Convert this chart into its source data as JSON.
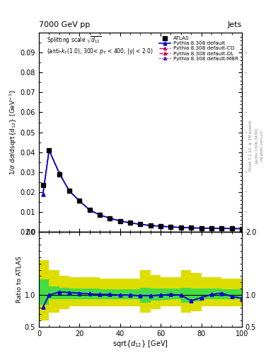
{
  "title_top": "7000 GeV pp",
  "title_right": "Jets",
  "xlabel": "sqrt{d_{12}} [GeV]",
  "ylabel_main": "1/#sigma d#sigma/dsqrt{d_{12}} [GeV^{-1}]",
  "ylabel_ratio": "Ratio to ATLAS",
  "rivet_label": "Rivet 3.1.10, ≥ 3M events",
  "arxiv_label": "[arXiv:1306.3436]",
  "mcplots_label": "mcplots.cern.ch",
  "xlim": [
    0,
    100
  ],
  "ylim_main": [
    0,
    0.1
  ],
  "ylim_ratio": [
    0.5,
    2.0
  ],
  "main_x": [
    2,
    5,
    10,
    15,
    20,
    25,
    30,
    35,
    40,
    45,
    50,
    55,
    60,
    65,
    70,
    75,
    80,
    85,
    90,
    95,
    100
  ],
  "data_y": [
    0.0235,
    0.041,
    0.029,
    0.0205,
    0.0155,
    0.011,
    0.0085,
    0.0068,
    0.0055,
    0.0045,
    0.0038,
    0.0032,
    0.0028,
    0.0025,
    0.0022,
    0.002,
    0.0019,
    0.0018,
    0.0017,
    0.00165,
    0.0016
  ],
  "pythia_default_y": [
    0.019,
    0.041,
    0.0295,
    0.0205,
    0.0155,
    0.011,
    0.0085,
    0.0068,
    0.0055,
    0.0045,
    0.0038,
    0.0032,
    0.0028,
    0.0025,
    0.0022,
    0.002,
    0.0019,
    0.0018,
    0.0017,
    0.00165,
    0.0016
  ],
  "ratio_x": [
    2,
    5,
    10,
    15,
    20,
    25,
    30,
    35,
    40,
    45,
    50,
    55,
    60,
    65,
    70,
    75,
    80,
    85,
    90,
    95,
    100
  ],
  "ratio_default": [
    0.81,
    1.0,
    1.05,
    1.04,
    1.03,
    1.02,
    1.01,
    1.01,
    1.0,
    1.0,
    0.99,
    0.99,
    1.0,
    1.01,
    1.0,
    0.91,
    0.96,
    1.01,
    1.03,
    0.98,
    0.95
  ],
  "band_x_edges": [
    0,
    5,
    10,
    15,
    20,
    25,
    30,
    35,
    40,
    45,
    50,
    55,
    60,
    65,
    70,
    75,
    80,
    85,
    90,
    95,
    100
  ],
  "green_band_low": [
    0.85,
    0.93,
    0.94,
    0.94,
    0.93,
    0.94,
    0.94,
    0.94,
    0.94,
    0.94,
    0.88,
    0.91,
    0.92,
    0.94,
    0.88,
    0.9,
    0.93,
    0.94,
    0.94,
    0.93,
    0.91
  ],
  "green_band_high": [
    1.25,
    1.14,
    1.12,
    1.1,
    1.1,
    1.1,
    1.09,
    1.09,
    1.09,
    1.09,
    1.12,
    1.1,
    1.1,
    1.1,
    1.12,
    1.1,
    1.1,
    1.1,
    1.09,
    1.09,
    1.1
  ],
  "yellow_band_low": [
    0.6,
    0.72,
    0.78,
    0.82,
    0.82,
    0.82,
    0.82,
    0.82,
    0.82,
    0.82,
    0.72,
    0.78,
    0.82,
    0.82,
    0.72,
    0.75,
    0.82,
    0.82,
    0.82,
    0.82,
    0.78
  ],
  "yellow_band_high": [
    1.55,
    1.4,
    1.3,
    1.28,
    1.28,
    1.28,
    1.26,
    1.26,
    1.26,
    1.26,
    1.4,
    1.32,
    1.28,
    1.28,
    1.4,
    1.35,
    1.28,
    1.28,
    1.26,
    1.26,
    1.3
  ],
  "color_default": "#0000dd",
  "color_cd": "#cc0055",
  "color_dl": "#cc0055",
  "color_mbr": "#5500cc",
  "color_data": "black",
  "color_green": "#44dd44",
  "color_yellow": "#dddd00",
  "background_color": "white"
}
